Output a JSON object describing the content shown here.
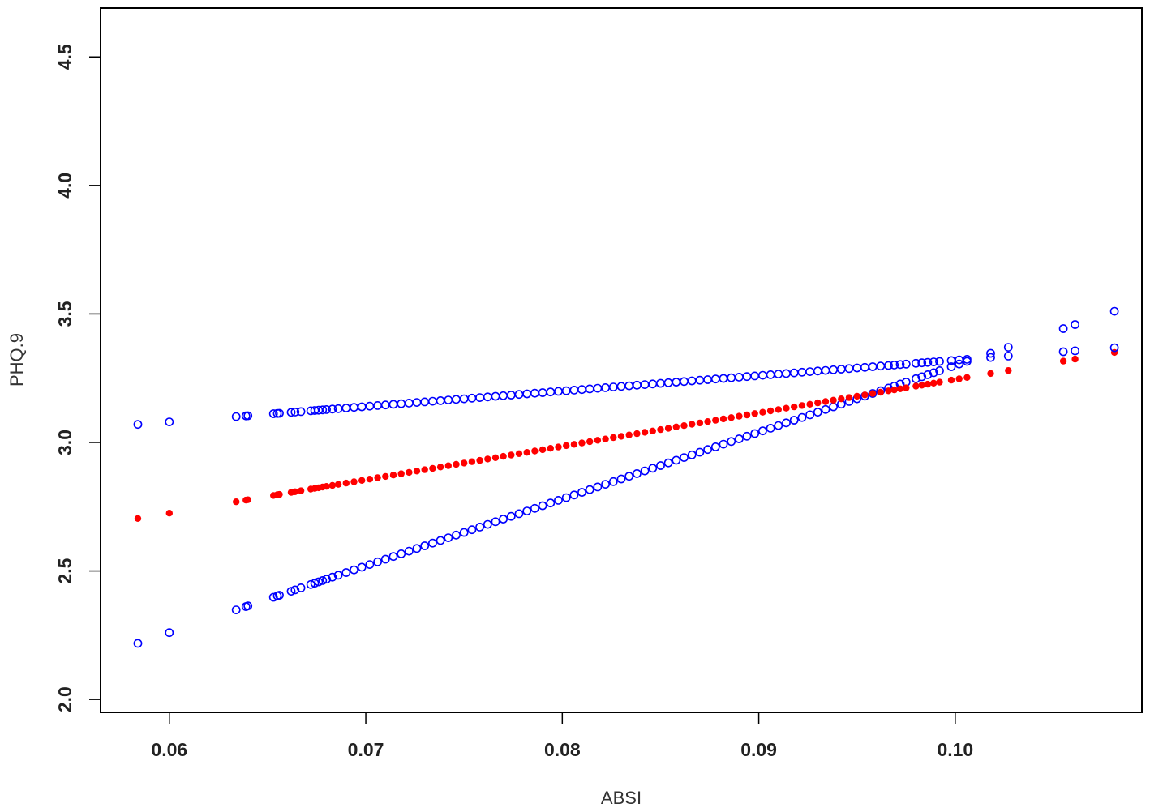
{
  "chart_data": {
    "type": "scatter",
    "title": "",
    "xlabel": "ABSI",
    "ylabel": "PHQ.9",
    "xlim": [
      0.0565,
      0.1095
    ],
    "ylim": [
      1.95,
      4.69
    ],
    "x_ticks": [
      0.06,
      0.07,
      0.08,
      0.09,
      0.1
    ],
    "x_tick_labels": [
      "0.06",
      "0.07",
      "0.08",
      "0.09",
      "0.10"
    ],
    "y_ticks": [
      2.0,
      2.5,
      3.0,
      3.5,
      4.0,
      4.5
    ],
    "y_tick_labels": [
      "2.0",
      "2.5",
      "3.0",
      "3.5",
      "4.0",
      "4.5"
    ],
    "grid": false,
    "legend": "none",
    "x": [
      0.0584,
      0.06,
      0.0634,
      0.0639,
      0.064,
      0.0653,
      0.0655,
      0.0656,
      0.0662,
      0.0664,
      0.0667,
      0.0672,
      0.0674,
      0.0676,
      0.0678,
      0.068,
      0.0683,
      0.0686,
      0.069,
      0.0694,
      0.0698,
      0.0702,
      0.0706,
      0.071,
      0.0714,
      0.0718,
      0.0722,
      0.0726,
      0.073,
      0.0734,
      0.0738,
      0.0742,
      0.0746,
      0.075,
      0.0754,
      0.0758,
      0.0762,
      0.0766,
      0.077,
      0.0774,
      0.0778,
      0.0782,
      0.0786,
      0.079,
      0.0794,
      0.0798,
      0.0802,
      0.0806,
      0.081,
      0.0814,
      0.0818,
      0.0822,
      0.0826,
      0.083,
      0.0834,
      0.0838,
      0.0842,
      0.0846,
      0.085,
      0.0854,
      0.0858,
      0.0862,
      0.0866,
      0.087,
      0.0874,
      0.0878,
      0.0882,
      0.0886,
      0.089,
      0.0894,
      0.0898,
      0.0902,
      0.0906,
      0.091,
      0.0914,
      0.0918,
      0.0922,
      0.0926,
      0.093,
      0.0934,
      0.0938,
      0.0942,
      0.0946,
      0.095,
      0.0954,
      0.0958,
      0.0962,
      0.0966,
      0.0969,
      0.0972,
      0.0975,
      0.098,
      0.0983,
      0.0986,
      0.0989,
      0.0992,
      0.0998,
      0.1002,
      0.1006,
      0.1018,
      0.1027,
      0.1055,
      0.1061,
      0.1081
    ],
    "series": [
      {
        "color": "#0000ff",
        "marker": "open-circle",
        "line": {
          "slope": 26.0,
          "intercept": 0.7
        }
      },
      {
        "color": "#ff0000",
        "marker": "filled-circle",
        "line": {
          "slope": 13.0,
          "intercept": 1.945
        }
      },
      {
        "color": "#0000ff",
        "marker": "open-circle",
        "line": {
          "slope": 6.0,
          "intercept": 2.72
        }
      }
    ]
  }
}
